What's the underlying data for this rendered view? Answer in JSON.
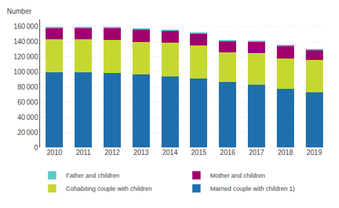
{
  "chart_data": {
    "type": "bar",
    "stacked": true,
    "ylabel": "Number",
    "categories": [
      "2010",
      "2011",
      "2012",
      "2013",
      "2014",
      "2015",
      "2016",
      "2017",
      "2018",
      "2019"
    ],
    "series": [
      {
        "name": "Married couple with children 1)",
        "color": "#1f6fad",
        "values": [
          99500,
          99500,
          98500,
          96500,
          94000,
          91000,
          86500,
          83000,
          77500,
          73500
        ]
      },
      {
        "name": "Cohabiting couple with children",
        "color": "#c5d832",
        "values": [
          44000,
          44000,
          44000,
          43500,
          44500,
          44000,
          40000,
          42500,
          40000,
          43000
        ]
      },
      {
        "name": "Mother and children",
        "color": "#a0006e",
        "values": [
          15000,
          15500,
          16000,
          16500,
          16500,
          16500,
          14500,
          15000,
          17000,
          12500
        ]
      },
      {
        "name": "Father and children",
        "color": "#5bc8c8",
        "values": [
          1000,
          1000,
          1000,
          1000,
          1000,
          1500,
          1500,
          1500,
          1500,
          1500
        ]
      }
    ],
    "ylim": [
      0,
      170000
    ],
    "yticks": [
      0,
      {
        "value": 20000,
        "label": "20 000"
      },
      {
        "value": 40000,
        "label": "40 000"
      },
      {
        "value": 60000,
        "label": "60 000"
      },
      {
        "value": 80000,
        "label": "80 000"
      },
      {
        "value": 100000,
        "label": "100 000"
      },
      {
        "value": 120000,
        "label": "120 000"
      },
      {
        "value": 140000,
        "label": "140 000"
      },
      {
        "value": 160000,
        "label": "160 000"
      }
    ],
    "grid": true,
    "legend": "bottom"
  }
}
